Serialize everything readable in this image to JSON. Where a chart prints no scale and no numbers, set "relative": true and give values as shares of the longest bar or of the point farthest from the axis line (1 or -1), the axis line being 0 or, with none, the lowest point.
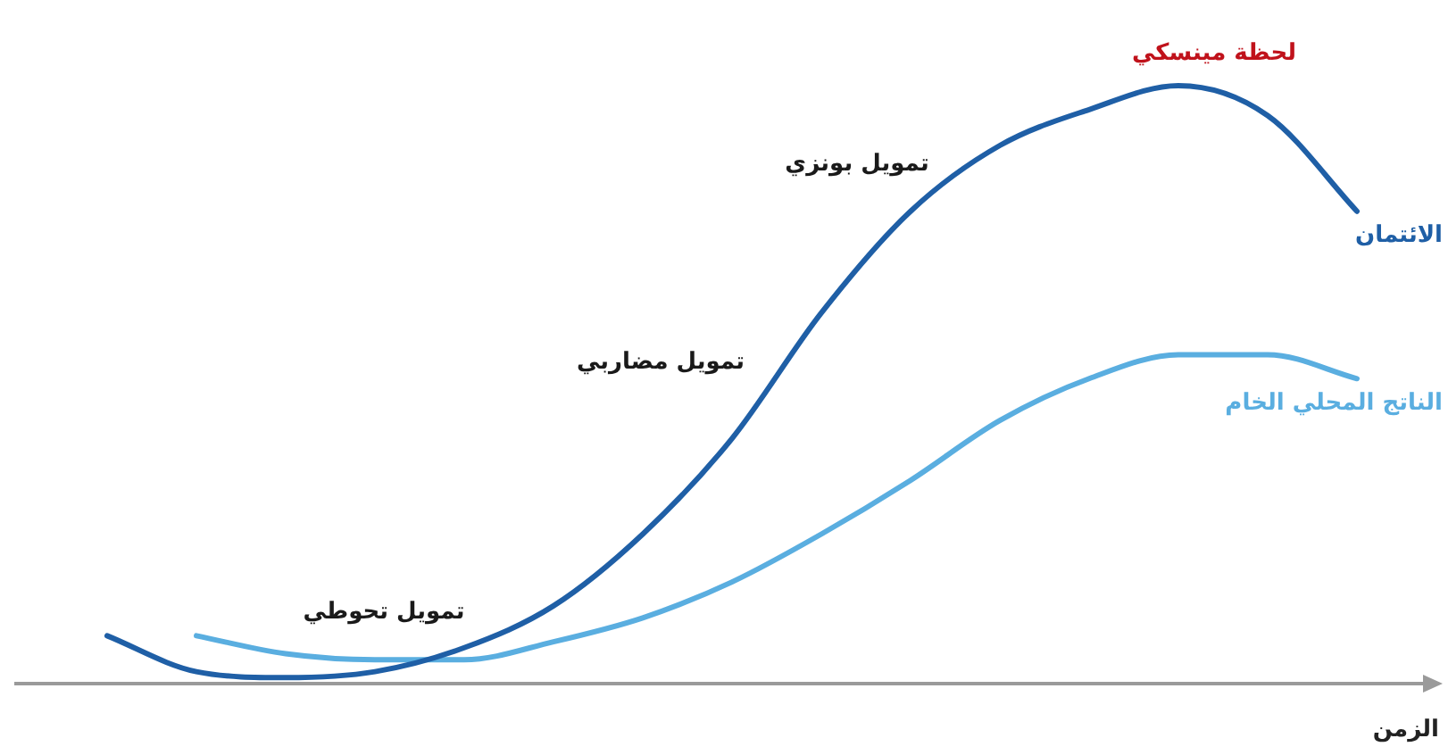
{
  "chart_data": {
    "type": "line",
    "relative": true,
    "xlabel": "الزمن",
    "categories": [
      null,
      null,
      null,
      null,
      null,
      null,
      null,
      null,
      null,
      null,
      null,
      null,
      null,
      null,
      null
    ],
    "series": [
      {
        "name": "الائتمان",
        "color": "#1f5fa6",
        "values": [
          0.08,
          0.02,
          0.01,
          0.02,
          0.06,
          0.13,
          0.25,
          0.41,
          0.62,
          0.79,
          0.9,
          0.96,
          1,
          0.95,
          0.79
        ]
      },
      {
        "name": "الناتج المحلي الخام",
        "color": "#5aaee0",
        "values": [
          null,
          0.08,
          0.05,
          0.04,
          0.04,
          0.07,
          0.11,
          0.17,
          0.25,
          0.34,
          0.44,
          0.51,
          0.55,
          0.55,
          0.51
        ]
      }
    ],
    "annotations": [
      "تمويل تحوطي",
      "تمويل مضاربي",
      "تمويل بونزي",
      "لحظة مينسكي"
    ]
  }
}
